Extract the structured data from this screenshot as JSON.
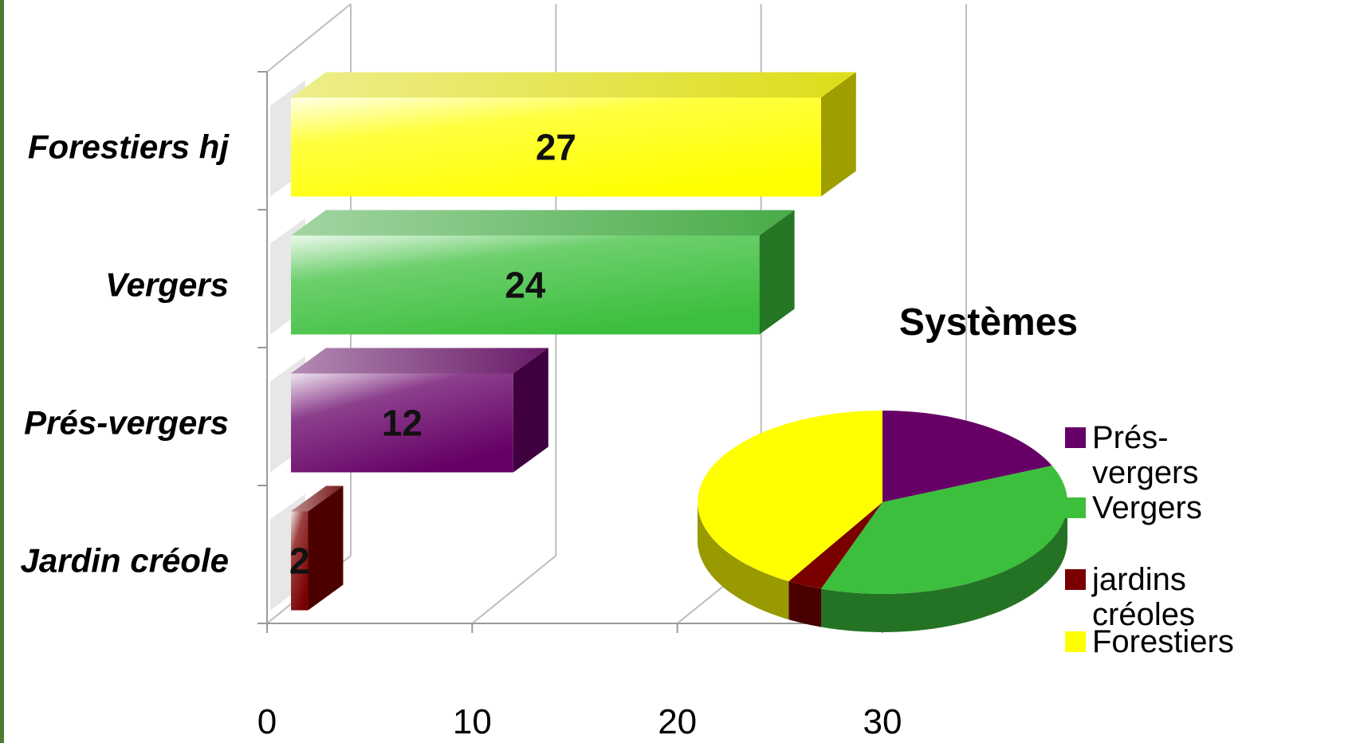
{
  "chart_data": [
    {
      "type": "bar",
      "orientation": "horizontal",
      "style": "3d",
      "title": "",
      "categories": [
        "Jardin créole",
        "Prés-vergers",
        "Vergers",
        "Forestiers hj"
      ],
      "values": [
        2,
        12,
        24,
        27
      ],
      "colors": [
        "#7a0000",
        "#660066",
        "#3cbf3c",
        "#ffff00"
      ],
      "xlim": [
        0,
        30
      ],
      "xticks": [
        "0",
        "10",
        "20",
        "30"
      ],
      "data_labels": true,
      "grid": true
    },
    {
      "type": "pie",
      "style": "3d",
      "title": "Systèmes",
      "slices": [
        {
          "label": "Prés-vergers",
          "legend_lines": [
            "Prés-",
            "vergers"
          ],
          "value": 12,
          "color": "#660066"
        },
        {
          "label": "Vergers",
          "legend_lines": [
            "Vergers"
          ],
          "value": 24,
          "color": "#3cbf3c"
        },
        {
          "label": "jardins créoles",
          "legend_lines": [
            "jardins",
            "créoles"
          ],
          "value": 2,
          "color": "#7a0000"
        },
        {
          "label": "Forestiers",
          "legend_lines": [
            "Forestiers"
          ],
          "value": 27,
          "color": "#ffff00"
        }
      ],
      "legend": "right"
    }
  ]
}
